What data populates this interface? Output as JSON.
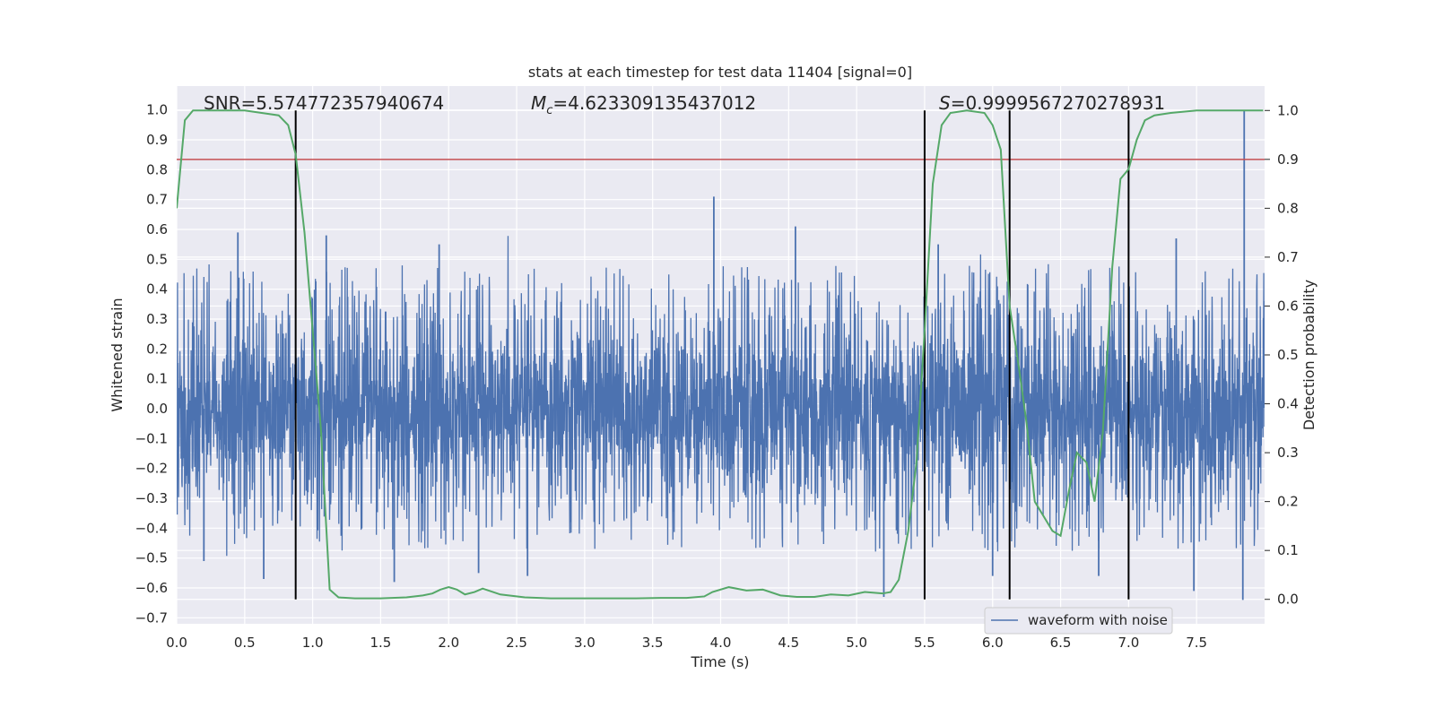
{
  "chart_data": {
    "type": "line",
    "title": "stats at each timestep for test data 11404 [signal=0]",
    "xlabel": "Time (s)",
    "ylabel": "Whitened strain",
    "y2label": "Detection probability",
    "xlim": [
      0.0,
      8.0
    ],
    "ylim": [
      -0.72,
      1.08
    ],
    "y2lim": [
      -0.05,
      1.05
    ],
    "xticks": [
      "0.0",
      "0.5",
      "1.0",
      "1.5",
      "2.0",
      "2.5",
      "3.0",
      "3.5",
      "4.0",
      "4.5",
      "5.0",
      "5.5",
      "6.0",
      "6.5",
      "7.0",
      "7.5"
    ],
    "yticks": [
      "1.0",
      "0.9",
      "0.8",
      "0.7",
      "0.6",
      "0.5",
      "0.4",
      "0.3",
      "0.2",
      "0.1",
      "0.0",
      "−0.1",
      "−0.2",
      "−0.3",
      "−0.4",
      "−0.5",
      "−0.6",
      "−0.7"
    ],
    "y2ticks": [
      "1.0",
      "0.9",
      "0.8",
      "0.7",
      "0.6",
      "0.5",
      "0.4",
      "0.3",
      "0.2",
      "0.1",
      "0.0"
    ],
    "annotations": {
      "snr": "SNR=5.574772357940674",
      "mc_symbol": "M",
      "mc_sub": "c",
      "mc_value": "=4.623309135437012",
      "s_symbol": "S",
      "s_value": "=0.9999567270278931"
    },
    "legend": {
      "label": "waveform with noise",
      "location": "lower-right"
    },
    "colors": {
      "background": "#eaeaf2",
      "grid": "#ffffff",
      "waveform": "#4c72b0",
      "probability": "#55a868",
      "threshold": "#c44e52",
      "vlines": "#000000"
    },
    "threshold": 0.9,
    "vertical_lines_s": [
      0.875,
      5.5,
      6.125,
      7.0
    ],
    "waveform": {
      "name": "waveform with noise",
      "typical_amplitude": 0.3,
      "tall_spikes": [
        {
          "t": 0.45,
          "y": 0.59
        },
        {
          "t": 1.1,
          "y": 0.58
        },
        {
          "t": 1.93,
          "y": 0.55
        },
        {
          "t": 3.95,
          "y": 0.71
        },
        {
          "t": 4.55,
          "y": 0.61
        },
        {
          "t": 5.6,
          "y": 0.55
        },
        {
          "t": 7.35,
          "y": 0.57
        },
        {
          "t": 7.85,
          "y": 1.0
        },
        {
          "t": 0.64,
          "y": -0.57
        },
        {
          "t": 1.6,
          "y": -0.58
        },
        {
          "t": 2.22,
          "y": -0.55
        },
        {
          "t": 2.58,
          "y": -0.56
        },
        {
          "t": 5.2,
          "y": -0.63
        },
        {
          "t": 7.84,
          "y": -0.64
        },
        {
          "t": 7.48,
          "y": -0.61
        },
        {
          "t": 0.2,
          "y": -0.51
        },
        {
          "t": 6.0,
          "y": -0.56
        },
        {
          "t": 6.78,
          "y": -0.56
        }
      ]
    },
    "probability_series": {
      "name": "detection probability",
      "x": [
        0.0,
        0.06,
        0.12,
        0.25,
        0.375,
        0.5,
        0.625,
        0.75,
        0.82,
        0.875,
        0.94,
        1.0,
        1.06,
        1.125,
        1.19,
        1.31,
        1.5,
        1.69,
        1.81,
        1.88,
        1.94,
        2.0,
        2.06,
        2.12,
        2.19,
        2.25,
        2.38,
        2.56,
        2.75,
        2.94,
        3.19,
        3.38,
        3.56,
        3.75,
        3.88,
        3.94,
        4.06,
        4.19,
        4.31,
        4.44,
        4.56,
        4.69,
        4.81,
        4.94,
        5.06,
        5.19,
        5.25,
        5.31,
        5.38,
        5.44,
        5.5,
        5.56,
        5.625,
        5.69,
        5.81,
        5.94,
        6.0,
        6.06,
        6.125,
        6.19,
        6.25,
        6.31,
        6.44,
        6.5,
        6.56,
        6.62,
        6.69,
        6.75,
        6.81,
        6.88,
        6.94,
        7.0,
        7.06,
        7.12,
        7.19,
        7.31,
        7.5,
        7.69,
        7.88,
        7.99
      ],
      "y": [
        0.8,
        0.98,
        1.0,
        1.0,
        1.0,
        1.0,
        0.995,
        0.99,
        0.97,
        0.91,
        0.75,
        0.55,
        0.35,
        0.02,
        0.004,
        0.002,
        0.002,
        0.004,
        0.008,
        0.012,
        0.02,
        0.025,
        0.02,
        0.01,
        0.015,
        0.022,
        0.01,
        0.004,
        0.002,
        0.002,
        0.002,
        0.002,
        0.003,
        0.003,
        0.006,
        0.015,
        0.025,
        0.018,
        0.02,
        0.008,
        0.005,
        0.005,
        0.01,
        0.008,
        0.015,
        0.012,
        0.015,
        0.04,
        0.14,
        0.28,
        0.55,
        0.85,
        0.97,
        0.995,
        1.0,
        0.995,
        0.97,
        0.92,
        0.6,
        0.48,
        0.36,
        0.2,
        0.14,
        0.13,
        0.22,
        0.3,
        0.28,
        0.2,
        0.34,
        0.68,
        0.86,
        0.88,
        0.94,
        0.98,
        0.99,
        0.995,
        1.0,
        1.0,
        1.0,
        1.0
      ]
    }
  }
}
